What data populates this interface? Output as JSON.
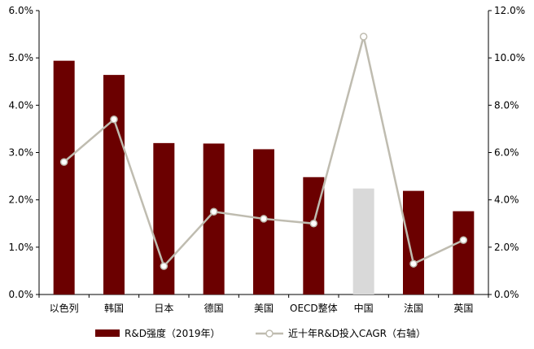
{
  "chart_data": {
    "type": "bar+line",
    "title": "",
    "categories": [
      "以色列",
      "韩国",
      "日本",
      "德国",
      "美国",
      "OECD整体",
      "中国",
      "法国",
      "英国"
    ],
    "series": [
      {
        "name": "R&D强度（2019年）",
        "type": "bar",
        "axis": "left",
        "values": [
          4.94,
          4.64,
          3.2,
          3.19,
          3.07,
          2.48,
          2.24,
          2.19,
          1.76
        ],
        "color": "#6b0000",
        "highlight": {
          "category": "中国",
          "color": "#d9d9d9"
        }
      },
      {
        "name": "近十年R&D投入CAGR（右轴）",
        "type": "line",
        "axis": "right",
        "values": [
          5.6,
          7.4,
          1.2,
          3.5,
          3.2,
          3.0,
          10.9,
          1.3,
          2.3
        ],
        "color": "#bfbcb0"
      }
    ],
    "y_left": {
      "min": 0,
      "max": 6,
      "step": 1,
      "ticks": [
        "0.0%",
        "1.0%",
        "2.0%",
        "3.0%",
        "4.0%",
        "5.0%",
        "6.0%"
      ]
    },
    "y_right": {
      "min": 0,
      "max": 12,
      "step": 2,
      "ticks": [
        "0.0%",
        "2.0%",
        "4.0%",
        "6.0%",
        "8.0%",
        "10.0%",
        "12.0%"
      ]
    },
    "grid": false,
    "legend": "bottom-center"
  }
}
